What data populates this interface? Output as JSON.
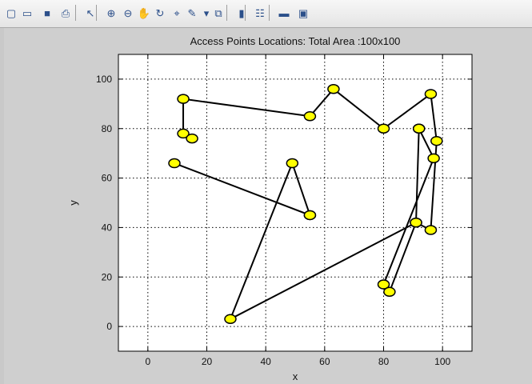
{
  "toolbar": {
    "buttons": [
      {
        "name": "new-figure",
        "icon": "new-file-icon",
        "glyph": "▢"
      },
      {
        "name": "open-file",
        "icon": "folder-icon",
        "glyph": "▭"
      },
      {
        "name": "save",
        "icon": "save-icon",
        "glyph": "■"
      },
      {
        "name": "print",
        "icon": "printer-icon",
        "glyph": "⎙"
      },
      {
        "name": "edit-plot",
        "icon": "arrow-pointer-icon",
        "glyph": "↖"
      },
      {
        "name": "zoom-in",
        "icon": "zoom-in-icon",
        "glyph": "⊕"
      },
      {
        "name": "zoom-out",
        "icon": "zoom-out-icon",
        "glyph": "⊖"
      },
      {
        "name": "pan",
        "icon": "hand-icon",
        "glyph": "✋"
      },
      {
        "name": "rotate-3d",
        "icon": "rotate-icon",
        "glyph": "↻"
      },
      {
        "name": "data-cursor",
        "icon": "data-cursor-icon",
        "glyph": "⌖"
      },
      {
        "name": "brush",
        "icon": "brush-icon",
        "glyph": "✎"
      },
      {
        "name": "brush-menu",
        "icon": "dropdown-arrow-icon",
        "glyph": "▾"
      },
      {
        "name": "link-plot",
        "icon": "link-icon",
        "glyph": "⧉"
      },
      {
        "name": "insert-colorbar",
        "icon": "colorbar-icon",
        "glyph": "▮"
      },
      {
        "name": "insert-legend",
        "icon": "legend-icon",
        "glyph": "☷"
      },
      {
        "name": "hide-plot-tools",
        "icon": "hide-tools-icon",
        "glyph": "▬"
      },
      {
        "name": "show-plot-tools",
        "icon": "show-tools-icon",
        "glyph": "▣"
      }
    ]
  },
  "colors": {
    "marker_fill": "#ffff00",
    "marker_edge": "#000000",
    "line": "#000000",
    "figure_bg": "#cfcfcf",
    "axes_bg": "#ffffff"
  },
  "chart_data": {
    "type": "line",
    "title": "Access Points Locations: Total Area :100x100",
    "xlabel": "x",
    "ylabel": "y",
    "xlim": [
      -10,
      110
    ],
    "ylim": [
      -10,
      110
    ],
    "xticks": [
      0,
      20,
      40,
      60,
      80,
      100
    ],
    "yticks": [
      0,
      20,
      40,
      60,
      80,
      100
    ],
    "grid": true,
    "grid_style": "dotted",
    "series": [
      {
        "marker": "circle",
        "x": [
          55,
          49,
          28,
          91,
          96,
          98,
          96,
          80,
          63,
          55,
          12,
          12,
          15
        ],
        "y": [
          45,
          66,
          3,
          42,
          39,
          75,
          94,
          80,
          96,
          85,
          92,
          78,
          76
        ]
      },
      {
        "marker": "circle",
        "x": [
          9,
          55
        ],
        "y": [
          66,
          45
        ]
      },
      {
        "marker": "circle",
        "x": [
          92,
          97,
          80,
          82,
          91,
          92
        ],
        "y": [
          80,
          68,
          17,
          14,
          42,
          80
        ]
      }
    ]
  }
}
